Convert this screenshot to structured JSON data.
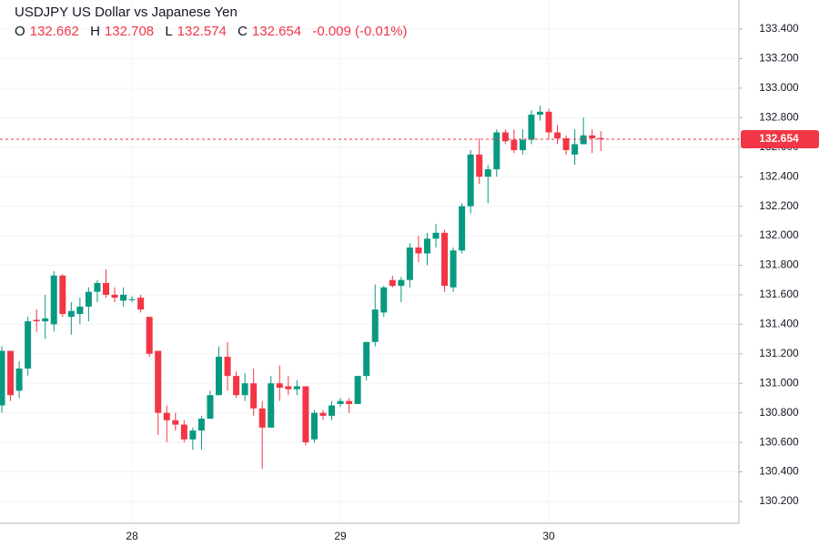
{
  "chart_data": {
    "type": "candlestick",
    "title": "USDJPY US Dollar vs Japanese Yen",
    "legend_keys": [
      "O",
      "H",
      "L",
      "C"
    ],
    "change_label": "-0.009 (-0.01%)",
    "categories": [
      null,
      null,
      null,
      null,
      null,
      null,
      null,
      null,
      null,
      null,
      null,
      null,
      null,
      null,
      null,
      "28",
      null,
      null,
      null,
      null,
      null,
      null,
      null,
      null,
      null,
      null,
      null,
      null,
      null,
      null,
      null,
      null,
      null,
      null,
      null,
      null,
      null,
      null,
      null,
      "29",
      null,
      null,
      null,
      null,
      null,
      null,
      null,
      null,
      null,
      null,
      null,
      null,
      null,
      null,
      null,
      null,
      null,
      null,
      null,
      null,
      null,
      null,
      null,
      "30",
      null,
      null,
      null,
      null,
      null,
      null
    ],
    "open": [
      130.85,
      131.22,
      130.95,
      131.1,
      131.43,
      131.42,
      131.4,
      131.73,
      131.45,
      131.47,
      131.52,
      131.62,
      131.68,
      131.6,
      131.56,
      131.57,
      131.58,
      131.45,
      131.22,
      130.8,
      130.75,
      130.72,
      130.62,
      130.68,
      130.76,
      130.92,
      131.18,
      131.05,
      130.92,
      131.0,
      130.83,
      130.7,
      131.0,
      130.98,
      130.96,
      130.98,
      130.62,
      130.8,
      130.78,
      130.86,
      130.88,
      130.86,
      131.05,
      131.28,
      131.48,
      131.7,
      131.66,
      131.7,
      131.92,
      131.88,
      131.98,
      132.02,
      131.65,
      131.9,
      132.2,
      132.55,
      132.4,
      132.45,
      132.7,
      132.65,
      132.58,
      132.65,
      132.82,
      132.84,
      132.7,
      132.66,
      132.55,
      132.62,
      132.68,
      132.662
    ],
    "high": [
      131.25,
      131.22,
      131.15,
      131.45,
      131.5,
      131.6,
      131.76,
      131.74,
      131.55,
      131.58,
      131.65,
      131.7,
      131.77,
      131.65,
      131.65,
      131.59,
      131.6,
      131.45,
      131.22,
      130.85,
      130.8,
      130.75,
      130.7,
      130.78,
      130.95,
      131.25,
      131.28,
      131.08,
      131.07,
      131.1,
      130.88,
      131.05,
      131.12,
      131.05,
      131.02,
      130.98,
      130.82,
      130.82,
      130.88,
      130.9,
      130.9,
      131.05,
      131.28,
      131.67,
      131.66,
      131.73,
      131.72,
      131.95,
      132.0,
      132.02,
      132.08,
      132.04,
      131.92,
      132.22,
      132.58,
      132.66,
      132.48,
      132.72,
      132.72,
      132.72,
      132.72,
      132.85,
      132.88,
      132.86,
      132.75,
      132.68,
      132.72,
      132.8,
      132.72,
      132.708
    ],
    "low": [
      130.8,
      130.88,
      130.9,
      131.05,
      131.35,
      131.3,
      131.35,
      131.45,
      131.33,
      131.4,
      131.42,
      131.55,
      131.58,
      131.55,
      131.52,
      131.55,
      131.48,
      131.18,
      130.65,
      130.6,
      130.68,
      130.6,
      130.55,
      130.55,
      130.76,
      130.92,
      130.95,
      130.9,
      130.88,
      130.78,
      130.42,
      130.7,
      130.88,
      130.92,
      130.92,
      130.58,
      130.6,
      130.75,
      130.75,
      130.84,
      130.8,
      130.86,
      131.02,
      131.25,
      131.45,
      131.65,
      131.55,
      131.65,
      131.82,
      131.8,
      131.92,
      131.62,
      131.62,
      131.88,
      132.15,
      132.35,
      132.22,
      132.4,
      132.62,
      132.56,
      132.55,
      132.62,
      132.78,
      132.65,
      132.62,
      132.55,
      132.48,
      132.62,
      132.56,
      132.574
    ],
    "close": [
      131.22,
      130.92,
      131.1,
      131.42,
      131.42,
      131.44,
      131.73,
      131.47,
      131.49,
      131.52,
      131.62,
      131.68,
      131.6,
      131.58,
      131.6,
      131.57,
      131.5,
      131.2,
      130.8,
      130.75,
      130.72,
      130.62,
      130.68,
      130.76,
      130.92,
      131.18,
      131.05,
      130.92,
      131.0,
      130.83,
      130.7,
      131.0,
      130.97,
      130.96,
      130.98,
      130.6,
      130.8,
      130.78,
      130.85,
      130.88,
      130.86,
      131.05,
      131.28,
      131.5,
      131.65,
      131.66,
      131.7,
      131.92,
      131.88,
      131.98,
      132.02,
      131.66,
      131.9,
      132.2,
      132.55,
      132.4,
      132.45,
      132.7,
      132.64,
      132.58,
      132.65,
      132.82,
      132.84,
      132.7,
      132.66,
      132.58,
      132.62,
      132.68,
      132.66,
      132.654
    ],
    "up_color": "#089981",
    "down_color": "#f23645",
    "ylim": [
      130.052,
      133.597
    ],
    "yticks": [
      {
        "value": 130.2,
        "label": "130.200"
      },
      {
        "value": 130.4,
        "label": "130.400"
      },
      {
        "value": 130.6,
        "label": "130.600"
      },
      {
        "value": 130.8,
        "label": "130.800"
      },
      {
        "value": 131.0,
        "label": "131.000"
      },
      {
        "value": 131.2,
        "label": "131.200"
      },
      {
        "value": 131.4,
        "label": "131.400"
      },
      {
        "value": 131.6,
        "label": "131.600"
      },
      {
        "value": 131.8,
        "label": "131.800"
      },
      {
        "value": 132.0,
        "label": "132.000"
      },
      {
        "value": 132.2,
        "label": "132.200"
      },
      {
        "value": 132.4,
        "label": "132.400"
      },
      {
        "value": 132.6,
        "label": "132.600"
      },
      {
        "value": 132.8,
        "label": "132.800"
      },
      {
        "value": 133.0,
        "label": "133.000"
      },
      {
        "value": 133.2,
        "label": "133.200"
      },
      {
        "value": 133.4,
        "label": "133.400"
      }
    ],
    "grid": true
  }
}
